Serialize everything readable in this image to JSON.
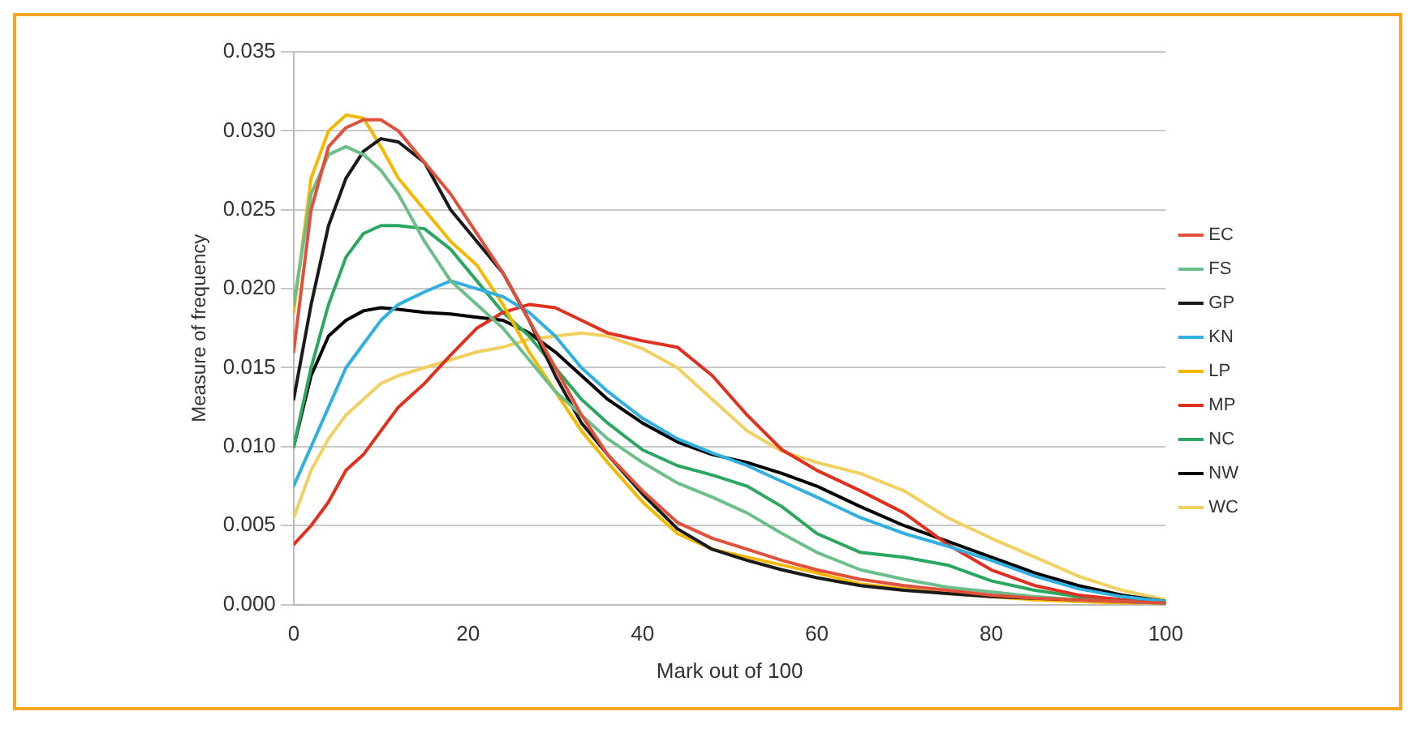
{
  "chart_data": {
    "type": "line",
    "xlabel": "Mark out of 100",
    "ylabel": "Measure of frequency",
    "x": [
      0,
      2,
      4,
      6,
      8,
      10,
      12,
      15,
      18,
      21,
      24,
      27,
      30,
      33,
      36,
      40,
      44,
      48,
      52,
      56,
      60,
      65,
      70,
      75,
      80,
      85,
      90,
      95,
      100
    ],
    "xlim": [
      0,
      100
    ],
    "xticks": [
      0,
      20,
      40,
      60,
      80,
      100
    ],
    "ylim": [
      0,
      0.035
    ],
    "yticks": [
      {
        "value": 0,
        "label": "0.000"
      },
      {
        "value": 0.005,
        "label": "0.005"
      },
      {
        "value": 0.01,
        "label": "0.010"
      },
      {
        "value": 0.015,
        "label": "0.015"
      },
      {
        "value": 0.02,
        "label": "0.020"
      },
      {
        "value": 0.025,
        "label": "0.025"
      },
      {
        "value": 0.03,
        "label": "0.030"
      },
      {
        "value": 0.035,
        "label": "0.035"
      }
    ],
    "grid": "y",
    "legend": "right",
    "marker": "none",
    "line_style": "solid",
    "series": [
      {
        "name": "EC",
        "color": "#e0503a",
        "values": [
          0.016,
          0.025,
          0.029,
          0.0302,
          0.0307,
          0.0307,
          0.03,
          0.028,
          0.026,
          0.0235,
          0.021,
          0.018,
          0.015,
          0.012,
          0.0095,
          0.0072,
          0.0052,
          0.0042,
          0.0035,
          0.0028,
          0.0022,
          0.0016,
          0.0012,
          0.0009,
          0.0006,
          0.0004,
          0.0003,
          0.0002,
          0.0001
        ]
      },
      {
        "name": "FS",
        "color": "#6cbf8a",
        "values": [
          0.019,
          0.026,
          0.0285,
          0.029,
          0.0285,
          0.0275,
          0.026,
          0.023,
          0.0205,
          0.019,
          0.0175,
          0.0155,
          0.0135,
          0.012,
          0.0105,
          0.009,
          0.0077,
          0.0068,
          0.0058,
          0.0045,
          0.0033,
          0.0022,
          0.0016,
          0.0011,
          0.0008,
          0.0005,
          0.0003,
          0.0002,
          0.0001
        ]
      },
      {
        "name": "GP",
        "color": "#1a1a1a",
        "values": [
          0.013,
          0.019,
          0.024,
          0.027,
          0.0287,
          0.0295,
          0.0293,
          0.028,
          0.025,
          0.023,
          0.021,
          0.018,
          0.0145,
          0.0115,
          0.0095,
          0.007,
          0.0048,
          0.0035,
          0.0028,
          0.0022,
          0.0017,
          0.0012,
          0.0009,
          0.0007,
          0.0005,
          0.0004,
          0.0003,
          0.0002,
          0.0001
        ]
      },
      {
        "name": "KN",
        "color": "#30b0e0",
        "values": [
          0.0075,
          0.01,
          0.0125,
          0.015,
          0.0165,
          0.018,
          0.019,
          0.0198,
          0.0205,
          0.02,
          0.0195,
          0.0185,
          0.017,
          0.015,
          0.0135,
          0.0118,
          0.0105,
          0.0096,
          0.0088,
          0.0078,
          0.0068,
          0.0055,
          0.0045,
          0.0037,
          0.0028,
          0.0018,
          0.001,
          0.0005,
          0.0002
        ]
      },
      {
        "name": "LP",
        "color": "#f5b800",
        "values": [
          0.0185,
          0.027,
          0.03,
          0.031,
          0.0308,
          0.029,
          0.027,
          0.025,
          0.023,
          0.0215,
          0.019,
          0.016,
          0.0135,
          0.011,
          0.009,
          0.0065,
          0.0045,
          0.0035,
          0.003,
          0.0025,
          0.002,
          0.0013,
          0.001,
          0.0007,
          0.0005,
          0.0003,
          0.0002,
          0.0001,
          0.0001
        ]
      },
      {
        "name": "MP",
        "color": "#e03020",
        "values": [
          0.0038,
          0.005,
          0.0065,
          0.0085,
          0.0095,
          0.011,
          0.0125,
          0.014,
          0.0158,
          0.0175,
          0.0185,
          0.019,
          0.0188,
          0.018,
          0.0172,
          0.0167,
          0.0163,
          0.0145,
          0.012,
          0.0098,
          0.0085,
          0.0072,
          0.0058,
          0.0038,
          0.0022,
          0.0012,
          0.0006,
          0.0003,
          0.0001
        ]
      },
      {
        "name": "NC",
        "color": "#2aa860",
        "values": [
          0.01,
          0.015,
          0.019,
          0.022,
          0.0235,
          0.024,
          0.024,
          0.0238,
          0.0225,
          0.0205,
          0.0185,
          0.017,
          0.015,
          0.013,
          0.0115,
          0.0098,
          0.0088,
          0.0082,
          0.0075,
          0.0062,
          0.0045,
          0.0033,
          0.003,
          0.0025,
          0.0015,
          0.0009,
          0.0005,
          0.0003,
          0.0002
        ]
      },
      {
        "name": "NW",
        "color": "#000000",
        "values": [
          0.01,
          0.0145,
          0.017,
          0.018,
          0.0186,
          0.0188,
          0.0187,
          0.0185,
          0.0184,
          0.0182,
          0.018,
          0.0172,
          0.016,
          0.0145,
          0.013,
          0.0115,
          0.0103,
          0.0095,
          0.009,
          0.0083,
          0.0075,
          0.0062,
          0.005,
          0.004,
          0.003,
          0.002,
          0.0012,
          0.0006,
          0.0002
        ]
      },
      {
        "name": "WC",
        "color": "#f2d060",
        "values": [
          0.0055,
          0.0085,
          0.0105,
          0.012,
          0.013,
          0.014,
          0.0145,
          0.015,
          0.0155,
          0.016,
          0.0163,
          0.0168,
          0.017,
          0.0172,
          0.017,
          0.0162,
          0.015,
          0.013,
          0.011,
          0.0097,
          0.009,
          0.0083,
          0.0072,
          0.0055,
          0.0042,
          0.003,
          0.0018,
          0.0009,
          0.0003
        ]
      }
    ]
  }
}
